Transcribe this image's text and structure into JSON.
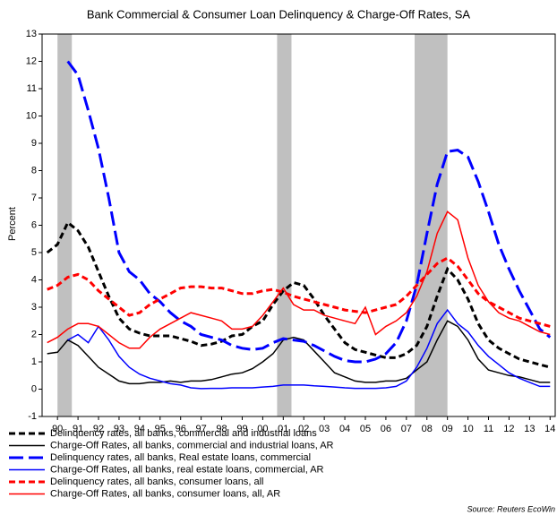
{
  "chart_data": {
    "type": "line",
    "subtitle": "Bank Commercial & Consumer Loan Delinquency & Charge-Off Rates, SA",
    "y_label": "Percent",
    "source": "Source: Reuters EcoWin",
    "xlim": [
      1989.75,
      2014.75
    ],
    "ylim": [
      -1,
      13
    ],
    "yticks": [
      -1,
      0,
      1,
      2,
      3,
      4,
      5,
      6,
      7,
      8,
      9,
      10,
      11,
      12,
      13
    ],
    "xticks": [
      {
        "value": 1990.5,
        "label": "90"
      },
      {
        "value": 1991.5,
        "label": "91"
      },
      {
        "value": 1992.5,
        "label": "92"
      },
      {
        "value": 1993.5,
        "label": "93"
      },
      {
        "value": 1994.5,
        "label": "94"
      },
      {
        "value": 1995.5,
        "label": "95"
      },
      {
        "value": 1996.5,
        "label": "96"
      },
      {
        "value": 1997.5,
        "label": "97"
      },
      {
        "value": 1998.5,
        "label": "98"
      },
      {
        "value": 1999.5,
        "label": "99"
      },
      {
        "value": 2000.5,
        "label": "00"
      },
      {
        "value": 2001.5,
        "label": "01"
      },
      {
        "value": 2002.5,
        "label": "02"
      },
      {
        "value": 2003.5,
        "label": "03"
      },
      {
        "value": 2004.5,
        "label": "04"
      },
      {
        "value": 2005.5,
        "label": "05"
      },
      {
        "value": 2006.5,
        "label": "06"
      },
      {
        "value": 2007.5,
        "label": "07"
      },
      {
        "value": 2008.5,
        "label": "08"
      },
      {
        "value": 2009.5,
        "label": "09"
      },
      {
        "value": 2010.5,
        "label": "10"
      },
      {
        "value": 2011.5,
        "label": "11"
      },
      {
        "value": 2012.5,
        "label": "12"
      },
      {
        "value": 2013.5,
        "label": "13"
      },
      {
        "value": 2014.5,
        "label": "14"
      }
    ],
    "shaded_periods": [
      [
        1990.5,
        1991.2
      ],
      [
        2001.2,
        2001.9
      ],
      [
        2007.9,
        2009.5
      ]
    ],
    "shade_color": "#c0c0c0",
    "x": [
      1990.0,
      1990.5,
      1991.0,
      1991.5,
      1992.0,
      1992.5,
      1993.0,
      1993.5,
      1994.0,
      1994.5,
      1995.0,
      1995.5,
      1996.0,
      1996.5,
      1997.0,
      1997.5,
      1998.0,
      1998.5,
      1999.0,
      1999.5,
      2000.0,
      2000.5,
      2001.0,
      2001.5,
      2002.0,
      2002.5,
      2003.0,
      2003.5,
      2004.0,
      2004.5,
      2005.0,
      2005.5,
      2006.0,
      2006.5,
      2007.0,
      2007.5,
      2008.0,
      2008.5,
      2009.0,
      2009.5,
      2010.0,
      2010.5,
      2011.0,
      2011.5,
      2012.0,
      2012.5,
      2013.0,
      2013.5,
      2014.0,
      2014.5
    ],
    "series": [
      {
        "name": "Delinquency rates, all banks, commercial and industrial loans",
        "color": "#000000",
        "style": "dashed",
        "values": [
          5.0,
          5.3,
          6.1,
          5.8,
          5.2,
          4.3,
          3.4,
          2.6,
          2.2,
          2.05,
          1.95,
          1.95,
          1.95,
          1.85,
          1.75,
          1.6,
          1.65,
          1.75,
          1.95,
          2.0,
          2.3,
          2.5,
          3.1,
          3.6,
          3.9,
          3.8,
          3.3,
          2.7,
          2.2,
          1.7,
          1.45,
          1.35,
          1.25,
          1.15,
          1.15,
          1.3,
          1.6,
          2.3,
          3.4,
          4.4,
          4.0,
          3.3,
          2.4,
          1.8,
          1.5,
          1.3,
          1.1,
          1.0,
          0.9,
          0.8
        ]
      },
      {
        "name": "Charge-Off Rates, all banks, commercial and industrial loans, AR",
        "color": "#000000",
        "style": "solid",
        "values": [
          1.3,
          1.35,
          1.8,
          1.6,
          1.2,
          0.8,
          0.55,
          0.3,
          0.2,
          0.2,
          0.25,
          0.25,
          0.3,
          0.25,
          0.3,
          0.3,
          0.35,
          0.45,
          0.55,
          0.6,
          0.75,
          1.0,
          1.3,
          1.8,
          1.9,
          1.8,
          1.4,
          1.0,
          0.6,
          0.45,
          0.3,
          0.25,
          0.25,
          0.3,
          0.3,
          0.4,
          0.7,
          1.0,
          1.8,
          2.5,
          2.3,
          1.8,
          1.1,
          0.7,
          0.6,
          0.5,
          0.45,
          0.35,
          0.25,
          0.25
        ]
      },
      {
        "name": "Delinquency rates, all banks, Real estate loans, commercial",
        "color": "#0000ff",
        "style": "longdash",
        "values": [
          null,
          null,
          12.0,
          11.5,
          10.2,
          8.8,
          7.0,
          5.0,
          4.3,
          4.0,
          3.5,
          3.2,
          2.8,
          2.5,
          2.3,
          2.0,
          1.9,
          1.8,
          1.6,
          1.5,
          1.45,
          1.5,
          1.7,
          1.85,
          1.8,
          1.75,
          1.6,
          1.4,
          1.2,
          1.05,
          1.0,
          1.0,
          1.1,
          1.3,
          1.7,
          2.5,
          3.8,
          5.7,
          7.5,
          8.7,
          8.75,
          8.5,
          7.6,
          6.5,
          5.3,
          4.4,
          3.6,
          2.9,
          2.2,
          1.9
        ]
      },
      {
        "name": "Charge-Off Rates, all banks, real estate loans, commercial, AR",
        "color": "#0000ff",
        "style": "solid",
        "values": [
          null,
          null,
          1.8,
          2.0,
          1.7,
          2.3,
          1.8,
          1.2,
          0.8,
          0.55,
          0.4,
          0.3,
          0.2,
          0.15,
          0.05,
          0.02,
          0.03,
          0.03,
          0.05,
          0.05,
          0.05,
          0.08,
          0.1,
          0.15,
          0.15,
          0.15,
          0.12,
          0.1,
          0.08,
          0.05,
          0.03,
          0.03,
          0.03,
          0.05,
          0.1,
          0.3,
          0.8,
          1.5,
          2.4,
          2.9,
          2.4,
          2.1,
          1.6,
          1.2,
          0.9,
          0.6,
          0.4,
          0.25,
          0.1,
          0.1
        ]
      },
      {
        "name": "Delinquency rates, all banks, consumer loans, all",
        "color": "#ff0000",
        "style": "dashed",
        "values": [
          3.65,
          3.8,
          4.1,
          4.2,
          4.0,
          3.6,
          3.3,
          3.0,
          2.7,
          2.8,
          3.1,
          3.3,
          3.5,
          3.7,
          3.75,
          3.75,
          3.7,
          3.7,
          3.6,
          3.5,
          3.5,
          3.6,
          3.65,
          3.55,
          3.4,
          3.3,
          3.2,
          3.1,
          3.0,
          2.9,
          2.85,
          2.8,
          2.9,
          3.0,
          3.1,
          3.4,
          3.8,
          4.2,
          4.6,
          4.8,
          4.5,
          4.0,
          3.5,
          3.2,
          3.0,
          2.8,
          2.6,
          2.5,
          2.4,
          2.3
        ]
      },
      {
        "name": "Charge-Off Rates, all banks, consumer loans, all, AR",
        "color": "#ff0000",
        "style": "solid",
        "values": [
          1.7,
          1.9,
          2.2,
          2.4,
          2.4,
          2.3,
          2.0,
          1.7,
          1.5,
          1.5,
          1.9,
          2.2,
          2.4,
          2.6,
          2.8,
          2.7,
          2.6,
          2.5,
          2.2,
          2.2,
          2.3,
          2.7,
          3.2,
          3.7,
          3.1,
          2.9,
          2.9,
          2.7,
          2.6,
          2.5,
          2.4,
          3.0,
          2.0,
          2.3,
          2.5,
          2.8,
          3.4,
          4.3,
          5.7,
          6.5,
          6.2,
          4.8,
          3.8,
          3.2,
          2.8,
          2.6,
          2.5,
          2.3,
          2.1,
          2.0
        ]
      }
    ]
  }
}
